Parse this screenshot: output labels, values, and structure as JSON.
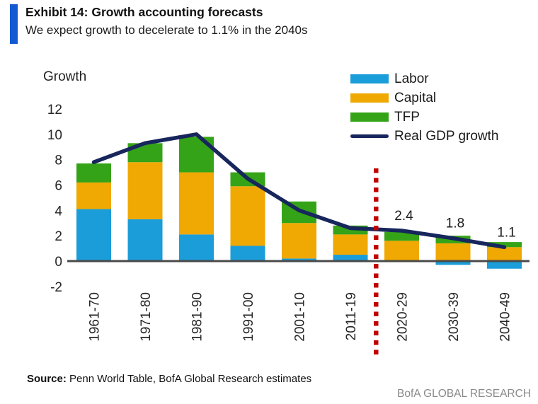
{
  "header": {
    "exhibit_title": "Exhibit 14: Growth accounting forecasts",
    "subtitle": "We expect growth to decelerate to 1.1% in the 2040s",
    "accent_color": "#1359D1"
  },
  "footer": {
    "source_label": "Source:",
    "source_text": " Penn World Table, BofA Global Research estimates",
    "brand": "BofA GLOBAL RESEARCH"
  },
  "chart_data": {
    "type": "bar",
    "stacked": true,
    "ylabel": "Growth",
    "ylim": [
      -2,
      12
    ],
    "yticks": [
      12,
      10,
      8,
      6,
      4,
      2,
      0,
      -2
    ],
    "grid": false,
    "legend_position": "top-right",
    "categories": [
      "1961-70",
      "1971-80",
      "1981-90",
      "1991-00",
      "2001-10",
      "2011-19",
      "2020-29",
      "2030-39",
      "2040-49"
    ],
    "series": [
      {
        "name": "Labor",
        "color": "#1A9DD9",
        "values": [
          4.1,
          3.3,
          2.1,
          1.2,
          0.2,
          0.5,
          0.0,
          -0.3,
          -0.6
        ]
      },
      {
        "name": "Capital",
        "color": "#F0A802",
        "values": [
          2.1,
          4.5,
          4.9,
          4.7,
          2.8,
          1.6,
          1.6,
          1.4,
          1.1
        ]
      },
      {
        "name": "TFP",
        "color": "#35A317",
        "values": [
          1.5,
          1.5,
          2.8,
          1.1,
          1.7,
          0.7,
          0.7,
          0.6,
          0.4
        ]
      }
    ],
    "line_series": {
      "name": "Real GDP growth",
      "color": "#17265C",
      "values": [
        7.8,
        9.3,
        10.0,
        6.5,
        4.0,
        2.6,
        2.4,
        1.8,
        1.1
      ]
    },
    "annotations": [
      {
        "text": "2.4",
        "category": "2020-29"
      },
      {
        "text": "1.8",
        "category": "2030-39"
      },
      {
        "text": "1.1",
        "category": "2040-49"
      }
    ],
    "forecast_divider": {
      "after_category": "2011-19",
      "color": "#C00000",
      "style": "dotted"
    }
  }
}
